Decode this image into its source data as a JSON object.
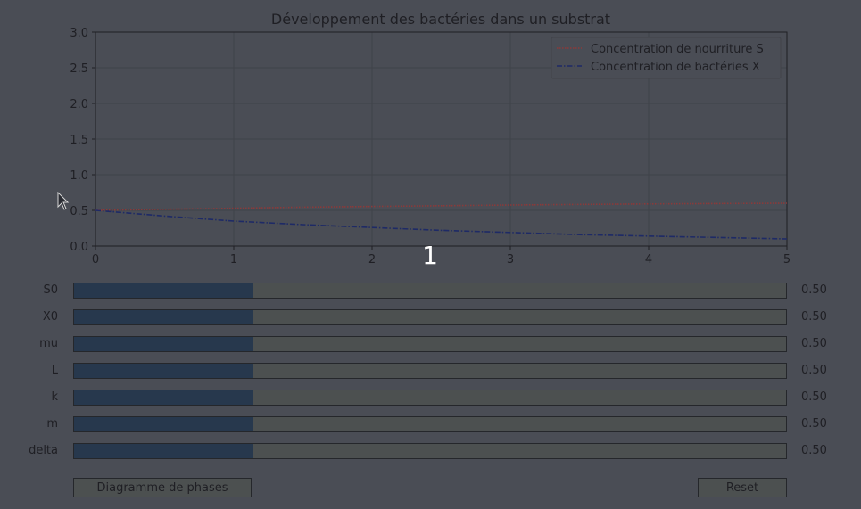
{
  "chart_data": {
    "type": "line",
    "title": "Développement des bactéries dans un substrat",
    "xlabel": "",
    "ylabel": "",
    "xlim": [
      0,
      5
    ],
    "ylim": [
      0,
      3.0
    ],
    "x_ticks": [
      "0",
      "1",
      "2",
      "3",
      "4",
      "5"
    ],
    "y_ticks": [
      "0.0",
      "0.5",
      "1.0",
      "1.5",
      "2.0",
      "2.5",
      "3.0"
    ],
    "grid": true,
    "legend_position": "upper-right",
    "series": [
      {
        "name": "Concentration de nourriture S",
        "color": "#8b3a3a",
        "style": "dotted",
        "x": [
          0,
          0.5,
          1,
          1.5,
          2,
          2.5,
          3,
          3.5,
          4,
          4.5,
          5
        ],
        "y": [
          0.5,
          0.515,
          0.53,
          0.545,
          0.555,
          0.565,
          0.575,
          0.583,
          0.59,
          0.595,
          0.6
        ]
      },
      {
        "name": "Concentration de bactéries X",
        "color": "#1e2a66",
        "style": "dashdot",
        "x": [
          0,
          0.5,
          1,
          1.5,
          2,
          2.5,
          3,
          3.5,
          4,
          4.5,
          5
        ],
        "y": [
          0.5,
          0.42,
          0.35,
          0.3,
          0.26,
          0.22,
          0.19,
          0.16,
          0.14,
          0.12,
          0.1
        ]
      }
    ]
  },
  "overlay_number": "1",
  "sliders": [
    {
      "label": "S0",
      "value": "0.50",
      "fraction": 0.25
    },
    {
      "label": "X0",
      "value": "0.50",
      "fraction": 0.25
    },
    {
      "label": "mu",
      "value": "0.50",
      "fraction": 0.25
    },
    {
      "label": "L",
      "value": "0.50",
      "fraction": 0.25
    },
    {
      "label": "k",
      "value": "0.50",
      "fraction": 0.25
    },
    {
      "label": "m",
      "value": "0.50",
      "fraction": 0.25
    },
    {
      "label": "delta",
      "value": "0.50",
      "fraction": 0.25
    }
  ],
  "buttons": {
    "phase_diagram": "Diagramme de phases",
    "reset": "Reset"
  },
  "colors": {
    "background": "#4a4d55",
    "axes_face": "#4a4d55",
    "text": "#1f1f24",
    "grid": "#3f4249",
    "slider_fill": "#27384d"
  }
}
